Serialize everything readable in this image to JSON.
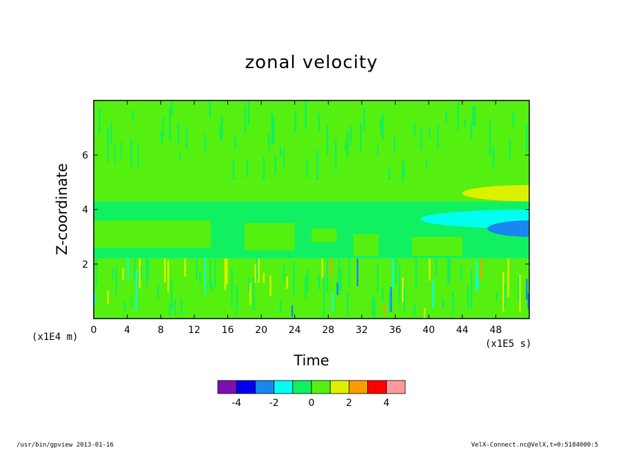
{
  "chart_data": {
    "type": "heatmap",
    "title": "zonal velocity",
    "xlabel": "Time",
    "ylabel": "Z-coordinate",
    "x_unit": "(x1E5 s)",
    "y_unit": "(x1E4 m)",
    "xlim": [
      0,
      52
    ],
    "ylim": [
      0,
      8
    ],
    "x_ticks": [
      0,
      4,
      8,
      12,
      16,
      20,
      24,
      28,
      32,
      36,
      40,
      44,
      48
    ],
    "y_ticks": [
      2,
      4,
      6
    ],
    "colorbar": {
      "levels": [
        -5,
        -4,
        -3,
        -2,
        -1,
        0,
        1,
        2,
        3,
        4,
        5
      ],
      "colors": [
        "#7f0fb0",
        "#0000f0",
        "#1a86f0",
        "#00fff0",
        "#10f060",
        "#55f010",
        "#ddf000",
        "#ff9a00",
        "#ff0000",
        "#ff9a9a"
      ],
      "tick_labels": [
        "-4",
        "-2",
        "0",
        "2",
        "4"
      ]
    },
    "bands": [
      {
        "z_range": [
          5.0,
          8.0
        ],
        "value": 0.4,
        "note": "noisy green upper layer"
      },
      {
        "z_range": [
          4.3,
          5.0
        ],
        "value": 0.0
      },
      {
        "z_range": [
          2.2,
          4.3
        ],
        "value": -0.3
      },
      {
        "z_range": [
          0.0,
          2.2
        ],
        "value": 0.2,
        "note": "high-variability near-surface layer"
      }
    ],
    "features": [
      {
        "x_range": [
          44,
          52
        ],
        "z_range": [
          4.3,
          4.9
        ],
        "value": 1.5
      },
      {
        "x_range": [
          39,
          52
        ],
        "z_range": [
          3.3,
          4.0
        ],
        "value": -1.5
      },
      {
        "x_range": [
          47,
          52
        ],
        "z_range": [
          3.0,
          3.6
        ],
        "value": -2.5
      }
    ]
  },
  "footer": {
    "left": "/usr/bin/gpview   2013-01-16",
    "right": "VelX-Connect.nc@VelX,t=0:5184000:5"
  }
}
